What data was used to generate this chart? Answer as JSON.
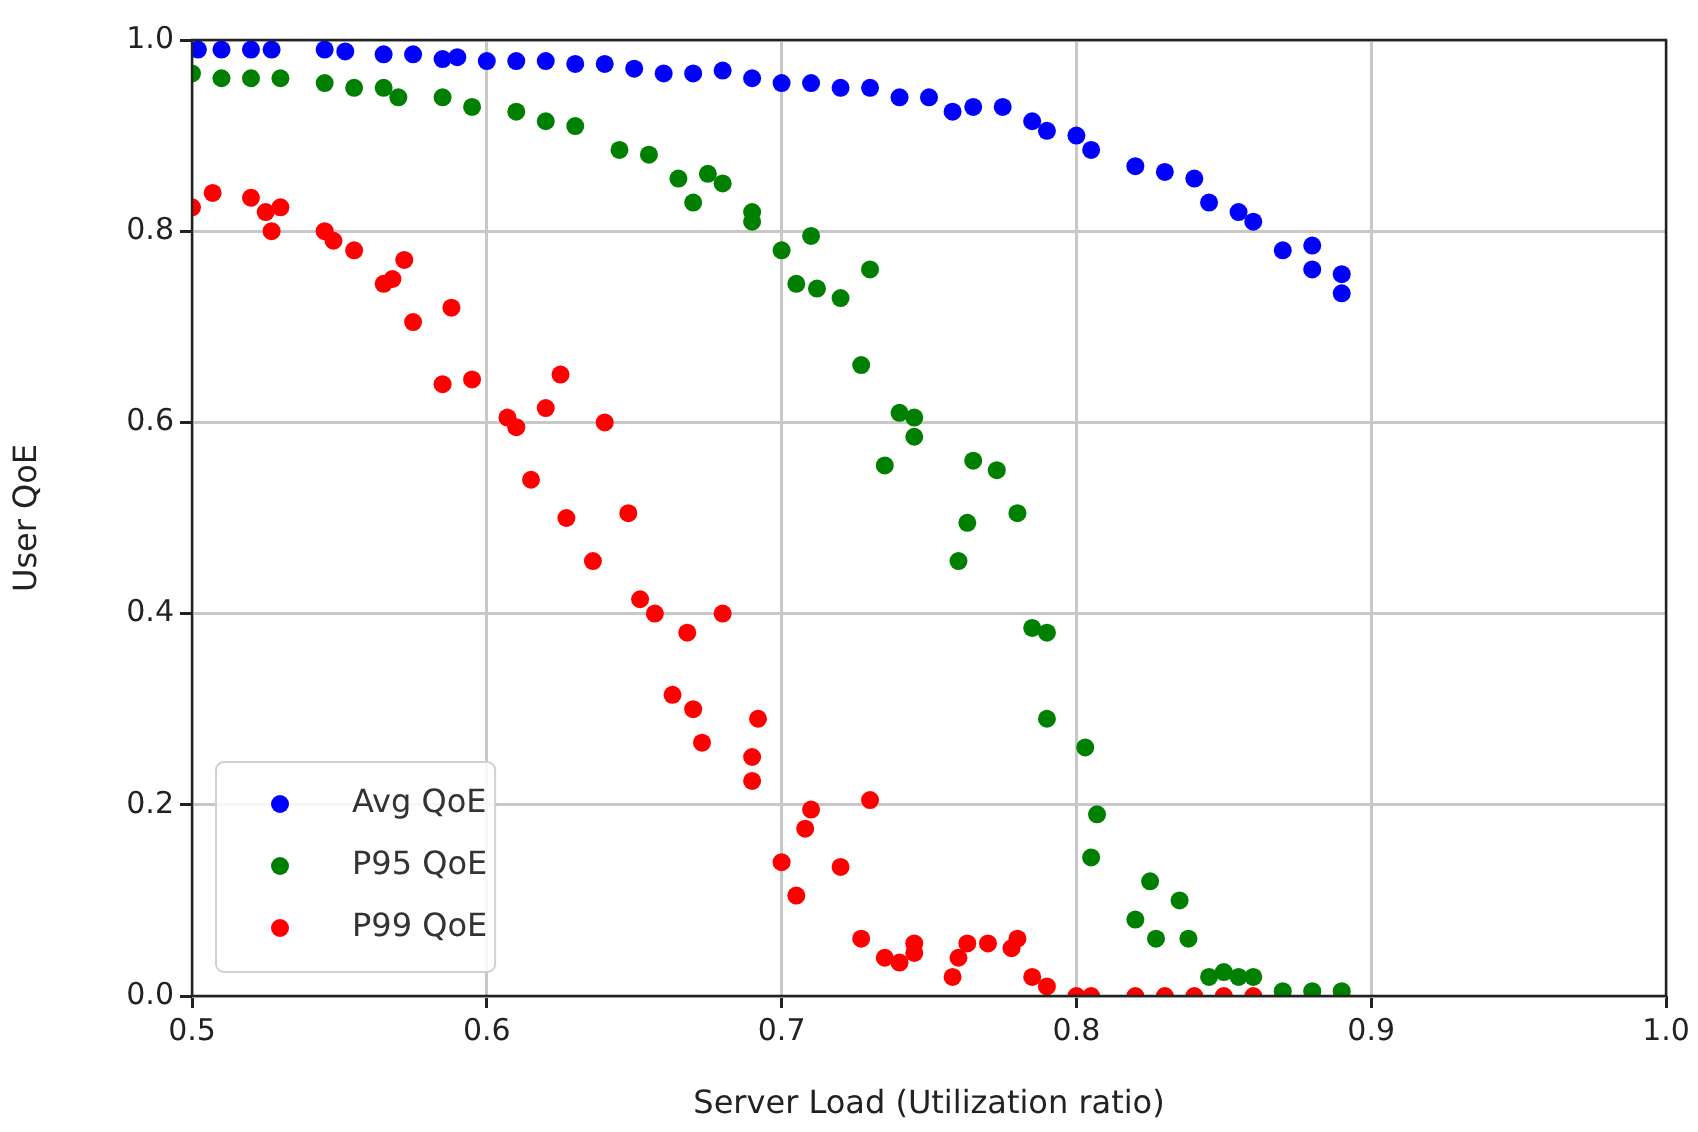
{
  "chart_data": {
    "type": "scatter",
    "xlabel": "Server Load (Utilization ratio)",
    "ylabel": "User QoE",
    "xlim": [
      0.5,
      1.0
    ],
    "xticks": [
      0.5,
      0.6,
      0.7,
      0.8,
      0.9,
      {
        "value": 1,
        "label": "1.0"
      }
    ],
    "ylim": [
      0,
      1.0
    ],
    "yticks": [
      {
        "value": 0,
        "label": "0.0"
      },
      0.2,
      0.4,
      0.6,
      0.8,
      {
        "value": 1,
        "label": "1.0"
      }
    ],
    "grid": true,
    "legend": "bottom left",
    "marker": "circle",
    "series": [
      {
        "name": "Avg QoE",
        "color": "#0000ff",
        "x": [
          0.502,
          0.51,
          0.52,
          0.527,
          0.545,
          0.552,
          0.565,
          0.575,
          0.585,
          0.59,
          0.6,
          0.61,
          0.62,
          0.63,
          0.64,
          0.65,
          0.66,
          0.67,
          0.68,
          0.69,
          0.7,
          0.71,
          0.72,
          0.73,
          0.74,
          0.75,
          0.758,
          0.765,
          0.775,
          0.785,
          0.79,
          0.8,
          0.805,
          0.82,
          0.83,
          0.84,
          0.845,
          0.855,
          0.86,
          0.87,
          0.88,
          0.88,
          0.89,
          0.89
        ],
        "values": [
          0.99,
          0.99,
          0.99,
          0.99,
          0.99,
          0.988,
          0.985,
          0.985,
          0.98,
          0.982,
          0.978,
          0.978,
          0.978,
          0.975,
          0.975,
          0.97,
          0.965,
          0.965,
          0.968,
          0.96,
          0.955,
          0.955,
          0.95,
          0.95,
          0.94,
          0.94,
          0.925,
          0.93,
          0.93,
          0.915,
          0.905,
          0.9,
          0.885,
          0.868,
          0.862,
          0.855,
          0.83,
          0.82,
          0.81,
          0.78,
          0.785,
          0.76,
          0.755,
          0.735
        ]
      },
      {
        "name": "P95 QoE",
        "color": "#008000",
        "x": [
          0.5,
          0.51,
          0.52,
          0.53,
          0.545,
          0.555,
          0.565,
          0.57,
          0.585,
          0.595,
          0.61,
          0.62,
          0.63,
          0.645,
          0.655,
          0.665,
          0.67,
          0.675,
          0.68,
          0.69,
          0.69,
          0.7,
          0.705,
          0.71,
          0.712,
          0.72,
          0.727,
          0.73,
          0.735,
          0.74,
          0.745,
          0.745,
          0.76,
          0.763,
          0.765,
          0.773,
          0.78,
          0.785,
          0.79,
          0.79,
          0.803,
          0.805,
          0.807,
          0.82,
          0.825,
          0.827,
          0.835,
          0.838,
          0.845,
          0.85,
          0.855,
          0.86,
          0.87,
          0.88,
          0.89
        ],
        "values": [
          0.965,
          0.96,
          0.96,
          0.96,
          0.955,
          0.95,
          0.95,
          0.94,
          0.94,
          0.93,
          0.925,
          0.915,
          0.91,
          0.885,
          0.88,
          0.855,
          0.83,
          0.86,
          0.85,
          0.82,
          0.81,
          0.78,
          0.745,
          0.795,
          0.74,
          0.73,
          0.66,
          0.76,
          0.555,
          0.61,
          0.605,
          0.585,
          0.455,
          0.495,
          0.56,
          0.55,
          0.505,
          0.385,
          0.38,
          0.29,
          0.26,
          0.145,
          0.19,
          0.08,
          0.12,
          0.06,
          0.1,
          0.06,
          0.02,
          0.025,
          0.02,
          0.02,
          0.005,
          0.005,
          0.005
        ]
      },
      {
        "name": "P99 QoE",
        "color": "#ff0000",
        "x": [
          0.5,
          0.507,
          0.52,
          0.525,
          0.527,
          0.53,
          0.545,
          0.548,
          0.555,
          0.565,
          0.568,
          0.572,
          0.575,
          0.585,
          0.588,
          0.595,
          0.607,
          0.61,
          0.615,
          0.62,
          0.625,
          0.627,
          0.636,
          0.64,
          0.648,
          0.652,
          0.657,
          0.663,
          0.668,
          0.67,
          0.673,
          0.68,
          0.69,
          0.69,
          0.692,
          0.7,
          0.705,
          0.708,
          0.71,
          0.72,
          0.727,
          0.73,
          0.735,
          0.74,
          0.745,
          0.745,
          0.758,
          0.76,
          0.763,
          0.77,
          0.778,
          0.78,
          0.785,
          0.79,
          0.8,
          0.805,
          0.82,
          0.83,
          0.84,
          0.85,
          0.86
        ],
        "values": [
          0.825,
          0.84,
          0.835,
          0.82,
          0.8,
          0.825,
          0.8,
          0.79,
          0.78,
          0.745,
          0.75,
          0.77,
          0.705,
          0.64,
          0.72,
          0.645,
          0.605,
          0.595,
          0.54,
          0.615,
          0.65,
          0.5,
          0.455,
          0.6,
          0.505,
          0.415,
          0.4,
          0.315,
          0.38,
          0.3,
          0.265,
          0.4,
          0.25,
          0.225,
          0.29,
          0.14,
          0.105,
          0.175,
          0.195,
          0.135,
          0.06,
          0.205,
          0.04,
          0.035,
          0.045,
          0.055,
          0.02,
          0.04,
          0.055,
          0.055,
          0.05,
          0.06,
          0.02,
          0.01,
          0,
          0,
          0,
          0,
          0,
          0,
          0
        ]
      }
    ]
  }
}
